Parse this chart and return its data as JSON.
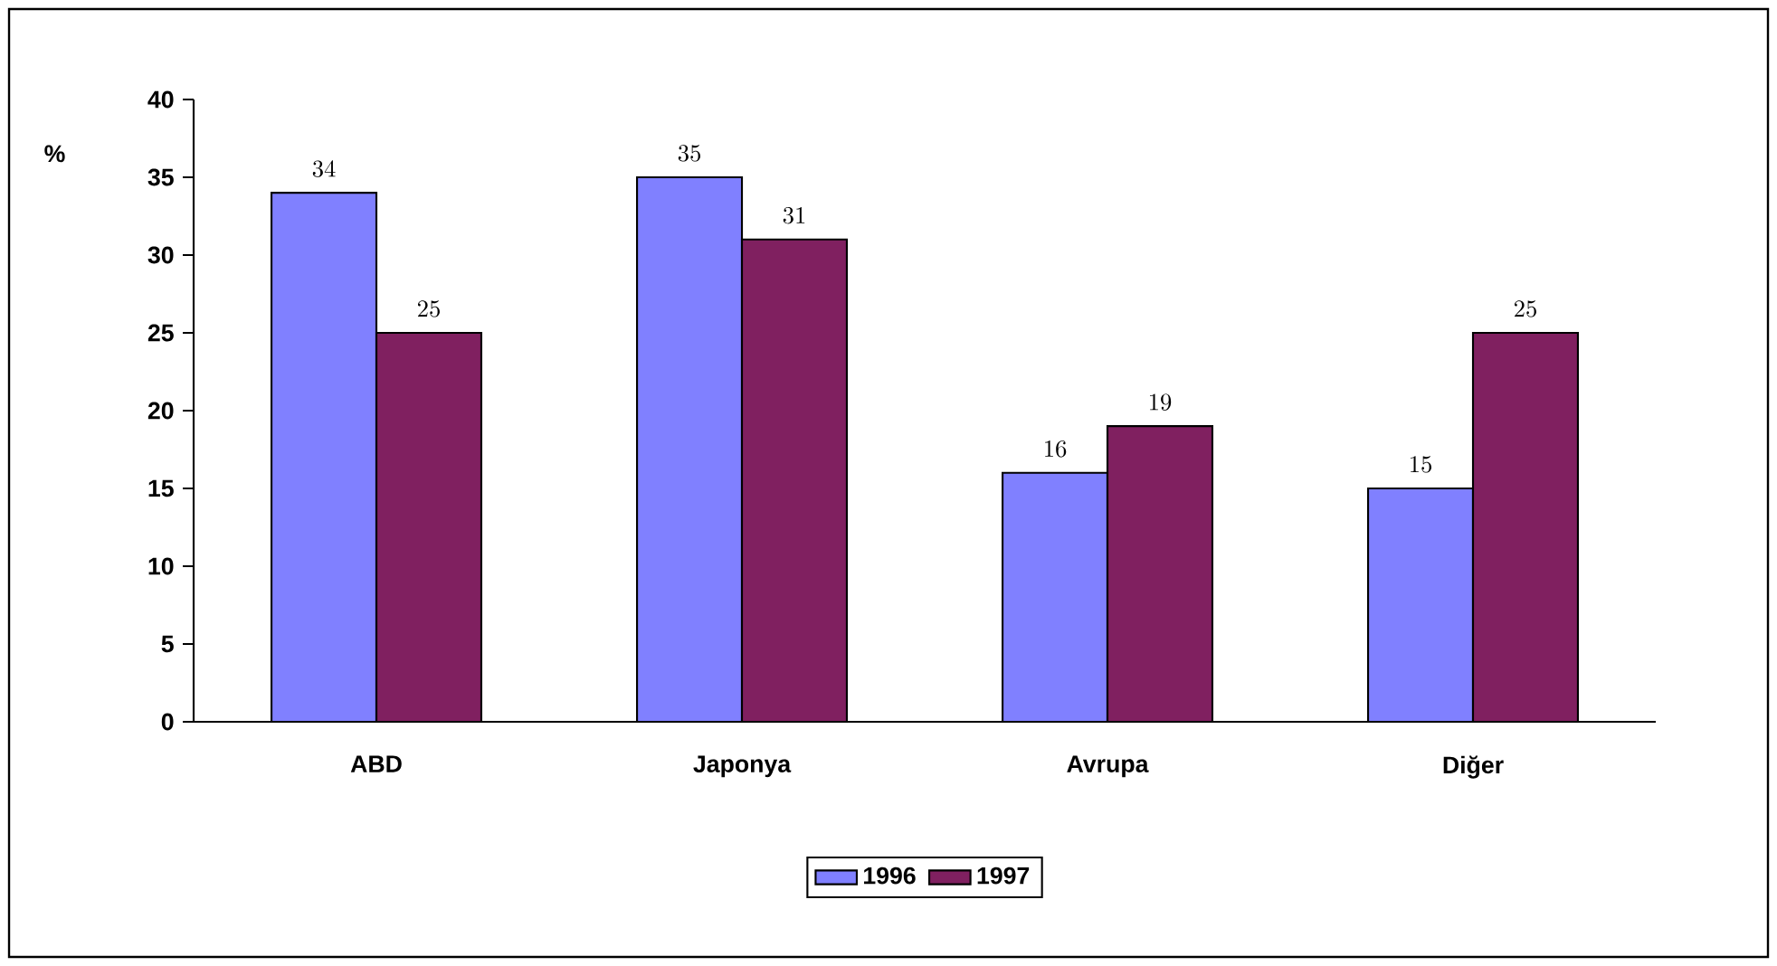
{
  "chart_data": {
    "type": "bar",
    "ylabel": "%",
    "categories": [
      "ABD",
      "Japonya",
      "Avrupa",
      "Diğer"
    ],
    "series": [
      {
        "name": "1996",
        "color": "#8080ff",
        "values": [
          34,
          35,
          16,
          15
        ]
      },
      {
        "name": "1997",
        "color": "#802060",
        "values": [
          25,
          31,
          19,
          25
        ]
      }
    ],
    "ylim": [
      0,
      40
    ],
    "yticks": [
      0,
      5,
      10,
      15,
      20,
      25,
      30,
      35,
      40
    ],
    "data_labels": true,
    "legend": "bottom"
  }
}
